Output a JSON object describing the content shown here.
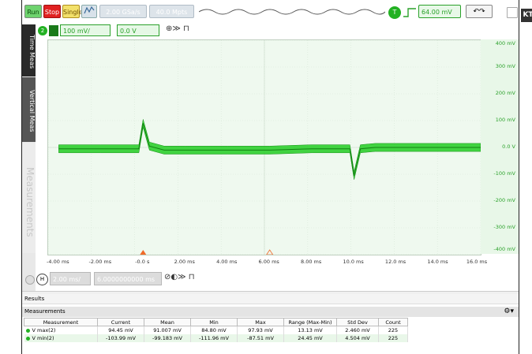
{
  "toolbar": {
    "run_label": "Run",
    "stop_label": "Stop",
    "single_label": "Single",
    "sample_rate": "2.00 GSa/s",
    "memory_depth": "40.0 Mpts",
    "trigger_badge": "T",
    "trigger_level": "64.00 mV",
    "logo_text": "KT"
  },
  "channel": {
    "number": "2",
    "scale": "100 mV/",
    "offset": "0.0 V"
  },
  "side_tabs": [
    "Time Meas",
    "Vertical Meas",
    "Measurements"
  ],
  "horizontal": {
    "badge": "H",
    "scale": "2.00 ms/",
    "position": "6.0000000000 ms"
  },
  "chart_data": {
    "type": "line",
    "x_unit": "ms",
    "y_unit": "mV",
    "xlim": [
      -4.5,
      16.0
    ],
    "ylim": [
      -400,
      400
    ],
    "x_ticks": [
      "-4.00 ms",
      "-2.00 ms",
      "-0.0 s",
      "2.00 ms",
      "4.00 ms",
      "6.00 ms",
      "8.00 ms",
      "10.0 ms",
      "12.0 ms",
      "14.0 ms",
      "16.0 ms"
    ],
    "y_ticks": [
      "400 mV",
      "300 mV",
      "200 mV",
      "100 mV",
      "0.0 V",
      "-100 mV",
      "-200 mV",
      "-300 mV",
      "-400 mV"
    ],
    "grid": true,
    "trace_color": "#22cc22",
    "x": [
      -4.0,
      -2.0,
      -0.2,
      0.0,
      0.3,
      1.0,
      2.0,
      4.0,
      6.0,
      8.0,
      9.8,
      10.0,
      10.3,
      11.0,
      12.0,
      14.0,
      16.0
    ],
    "y": [
      -5,
      -5,
      -5,
      90,
      5,
      -10,
      -10,
      -10,
      -10,
      -5,
      -5,
      -105,
      -5,
      0,
      0,
      0,
      0
    ],
    "noise_band_mV": 30
  },
  "results": {
    "panel_title": "Results",
    "section_title": "Measurements",
    "columns": [
      "Measurement",
      "Current",
      "Mean",
      "Min",
      "Max",
      "Range (Max-Min)",
      "Std Dev",
      "Count"
    ],
    "rows": [
      [
        "V max(2)",
        "94.45 mV",
        "91.007 mV",
        "84.80 mV",
        "97.93 mV",
        "13.13 mV",
        "2.460 mV",
        "225"
      ],
      [
        "V min(2)",
        "-103.99 mV",
        "-99.183 mV",
        "-111.96 mV",
        "-87.51 mV",
        "24.45 mV",
        "4.504 mV",
        "225"
      ]
    ]
  }
}
